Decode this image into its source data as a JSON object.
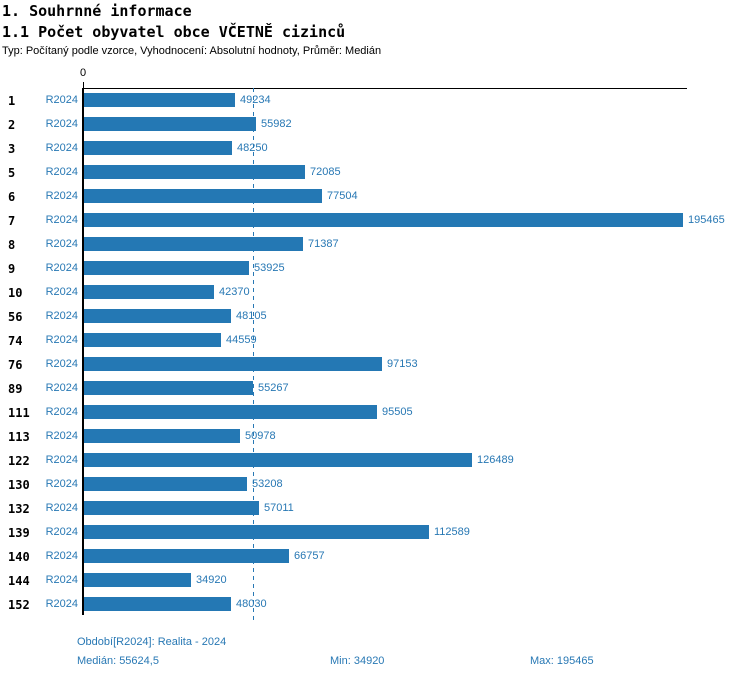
{
  "header": {
    "title": "1. Souhrnné informace",
    "subtitle": "1.1 Počet obyvatel obce VČETNĚ cizinců",
    "meta": "Typ: Počítaný podle vzorce, Vyhodnocení: Absolutní hodnoty, Průměr: Medián"
  },
  "chart_data": {
    "type": "bar",
    "orientation": "horizontal",
    "zero_label": "0",
    "row_series_label": "R2024",
    "categories": [
      "1",
      "2",
      "3",
      "5",
      "6",
      "7",
      "8",
      "9",
      "10",
      "56",
      "74",
      "76",
      "89",
      "111",
      "113",
      "122",
      "130",
      "132",
      "139",
      "140",
      "144",
      "152"
    ],
    "values": [
      49234,
      55982,
      48250,
      72085,
      77504,
      195465,
      71387,
      53925,
      42370,
      48105,
      44559,
      97153,
      55267,
      95505,
      50978,
      126489,
      53208,
      57011,
      112589,
      66757,
      34920,
      48030
    ],
    "median": 55624.5,
    "min": 34920,
    "max": 195465,
    "xlim": [
      0,
      195465
    ],
    "grid": false,
    "median_line": "dashed"
  },
  "footer": {
    "period": "Období[R2024]: Realita - 2024",
    "median": "Medián: 55624,5",
    "min": "Min: 34920",
    "max": "Max: 195465"
  },
  "colors": {
    "bar": "#2478b4",
    "blue_text": "#2878b4",
    "axis": "#000000"
  }
}
